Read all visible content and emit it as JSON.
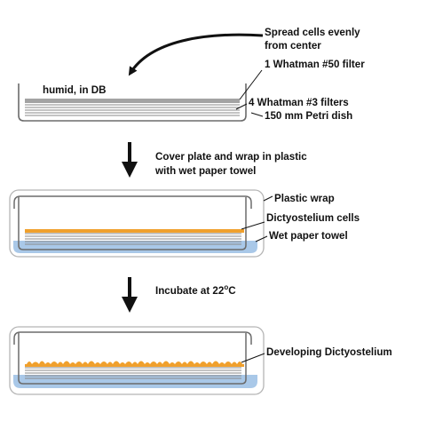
{
  "figure": {
    "step1": {
      "note_spread_1": "Spread cells evenly",
      "note_spread_2": "from center",
      "label_whatman50": "1 Whatman #50 filter",
      "label_humid": "humid, in DB",
      "label_whatman3": "4 Whatman #3 filters",
      "label_petri": "150 mm Petri dish"
    },
    "step2": {
      "instruction_1": "Cover plate and wrap in plastic",
      "instruction_2": "with wet paper towel",
      "label_plastic_wrap": "Plastic wrap",
      "label_cells": "Dictyostelium cells",
      "label_towel": "Wet paper towel"
    },
    "step3": {
      "instruction_prefix": "Incubate at 22",
      "instruction_degree": "o",
      "instruction_suffix": "C",
      "label_developing": "Developing Dictyostelium"
    }
  },
  "colors": {
    "dish_outline": "#6b6b6b",
    "filter_lines": "#8a8a8a",
    "cells_orange": "#f0a02c",
    "wet_towel_blue": "#a9c8e8",
    "plastic_wrap": "#b5b5b5",
    "text": "#111111"
  }
}
